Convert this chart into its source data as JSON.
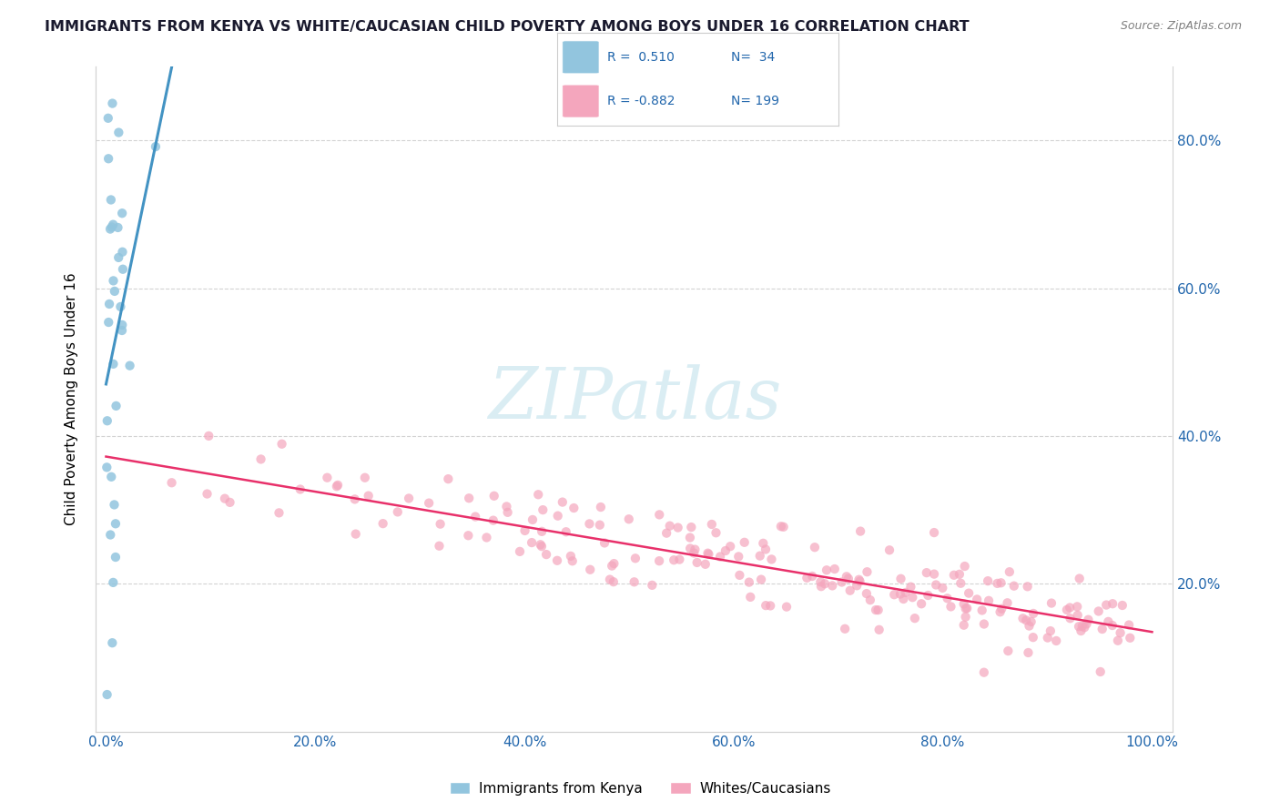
{
  "title": "IMMIGRANTS FROM KENYA VS WHITE/CAUCASIAN CHILD POVERTY AMONG BOYS UNDER 16 CORRELATION CHART",
  "source": "Source: ZipAtlas.com",
  "ylabel": "Child Poverty Among Boys Under 16",
  "blue_r": 0.51,
  "blue_n": 34,
  "pink_r": -0.882,
  "pink_n": 199,
  "blue_color": "#92c5de",
  "blue_line_color": "#4393c3",
  "pink_color": "#f4a6bd",
  "pink_line_color": "#e8306a",
  "axis_label_color": "#2166ac",
  "title_color": "#1a1a2e",
  "watermark_text": "ZIPatlas",
  "watermark_color": "#add8e6",
  "grid_color": "#d3d3d3",
  "xmin": 0.0,
  "xmax": 1.0,
  "ymin": 0.0,
  "ymax": 0.9,
  "x_ticks": [
    0.0,
    0.2,
    0.4,
    0.6,
    0.8,
    1.0
  ],
  "x_tick_labels": [
    "0.0%",
    "20.0%",
    "40.0%",
    "60.0%",
    "80.0%",
    "100.0%"
  ],
  "y_ticks": [
    0.2,
    0.4,
    0.6,
    0.8
  ],
  "y_tick_labels": [
    "20.0%",
    "40.0%",
    "60.0%",
    "80.0%"
  ],
  "bottom_legend": [
    "Immigrants from Kenya",
    "Whites/Caucasians"
  ]
}
